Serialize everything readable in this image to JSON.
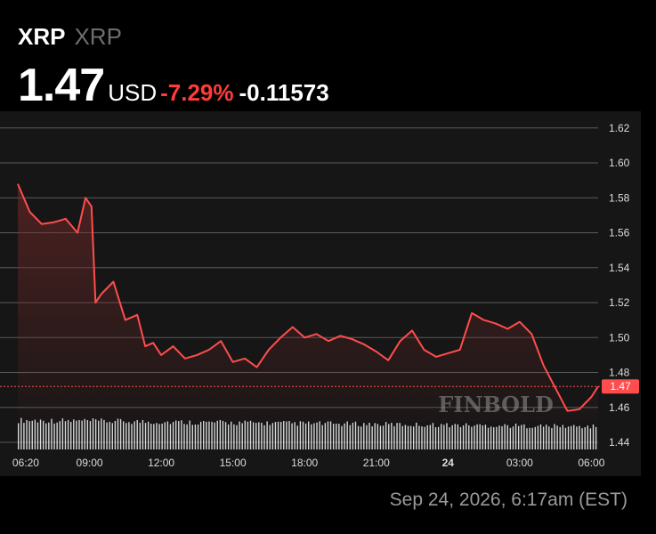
{
  "header": {
    "symbol": "XRP",
    "symbol_sub": "XRP",
    "price": "1.47",
    "currency": "USD",
    "change_pct": "-7.29%",
    "change_abs": "-0.11573"
  },
  "footer": {
    "timestamp": "Sep 24, 2026, 6:17am (EST)"
  },
  "watermark": {
    "text": "FINBOLD"
  },
  "colors": {
    "background": "#000000",
    "panel": "#161616",
    "line": "#ff4d4d",
    "negative": "#ff3b3b",
    "grid": "#5a5a5a",
    "volume": "#d8d8d8",
    "price_badge": "#ff4d4d"
  },
  "chart_data": {
    "type": "line",
    "x": [
      "06:00",
      "06:30",
      "07:00",
      "07:30",
      "08:00",
      "08:30",
      "08:50",
      "09:05",
      "09:15",
      "09:30",
      "10:00",
      "10:30",
      "11:00",
      "11:20",
      "11:40",
      "12:00",
      "12:30",
      "13:00",
      "13:30",
      "14:00",
      "14:30",
      "15:00",
      "15:30",
      "16:00",
      "16:30",
      "17:00",
      "17:30",
      "18:00",
      "18:30",
      "19:00",
      "19:30",
      "20:00",
      "20:30",
      "21:00",
      "21:30",
      "22:00",
      "22:30",
      "23:00",
      "23:30",
      "00:00",
      "00:30",
      "01:00",
      "01:30",
      "02:00",
      "02:30",
      "03:00",
      "03:30",
      "04:00",
      "04:30",
      "05:00",
      "05:30",
      "06:00",
      "06:17"
    ],
    "values": [
      1.588,
      1.572,
      1.565,
      1.566,
      1.568,
      1.56,
      1.58,
      1.575,
      1.52,
      1.525,
      1.532,
      1.51,
      1.513,
      1.495,
      1.497,
      1.49,
      1.495,
      1.488,
      1.49,
      1.493,
      1.498,
      1.486,
      1.488,
      1.483,
      1.493,
      1.5,
      1.506,
      1.5,
      1.502,
      1.498,
      1.501,
      1.499,
      1.496,
      1.492,
      1.487,
      1.498,
      1.504,
      1.493,
      1.489,
      1.491,
      1.493,
      1.514,
      1.51,
      1.508,
      1.505,
      1.509,
      1.502,
      1.484,
      1.471,
      1.458,
      1.459,
      1.466,
      1.472
    ],
    "x_ticks": [
      "06:20",
      "09:00",
      "12:00",
      "15:00",
      "18:00",
      "21:00",
      "24",
      "03:00",
      "06:00"
    ],
    "y_ticks": [
      "1.62",
      "1.60",
      "1.58",
      "1.56",
      "1.54",
      "1.52",
      "1.50",
      "1.48",
      "1.46",
      "1.44"
    ],
    "ylim": [
      1.44,
      1.625
    ],
    "current_price_label": "1.47",
    "current_price": 1.472,
    "volume_bar_count": 210,
    "volume_level": 0.9,
    "grid": true
  }
}
